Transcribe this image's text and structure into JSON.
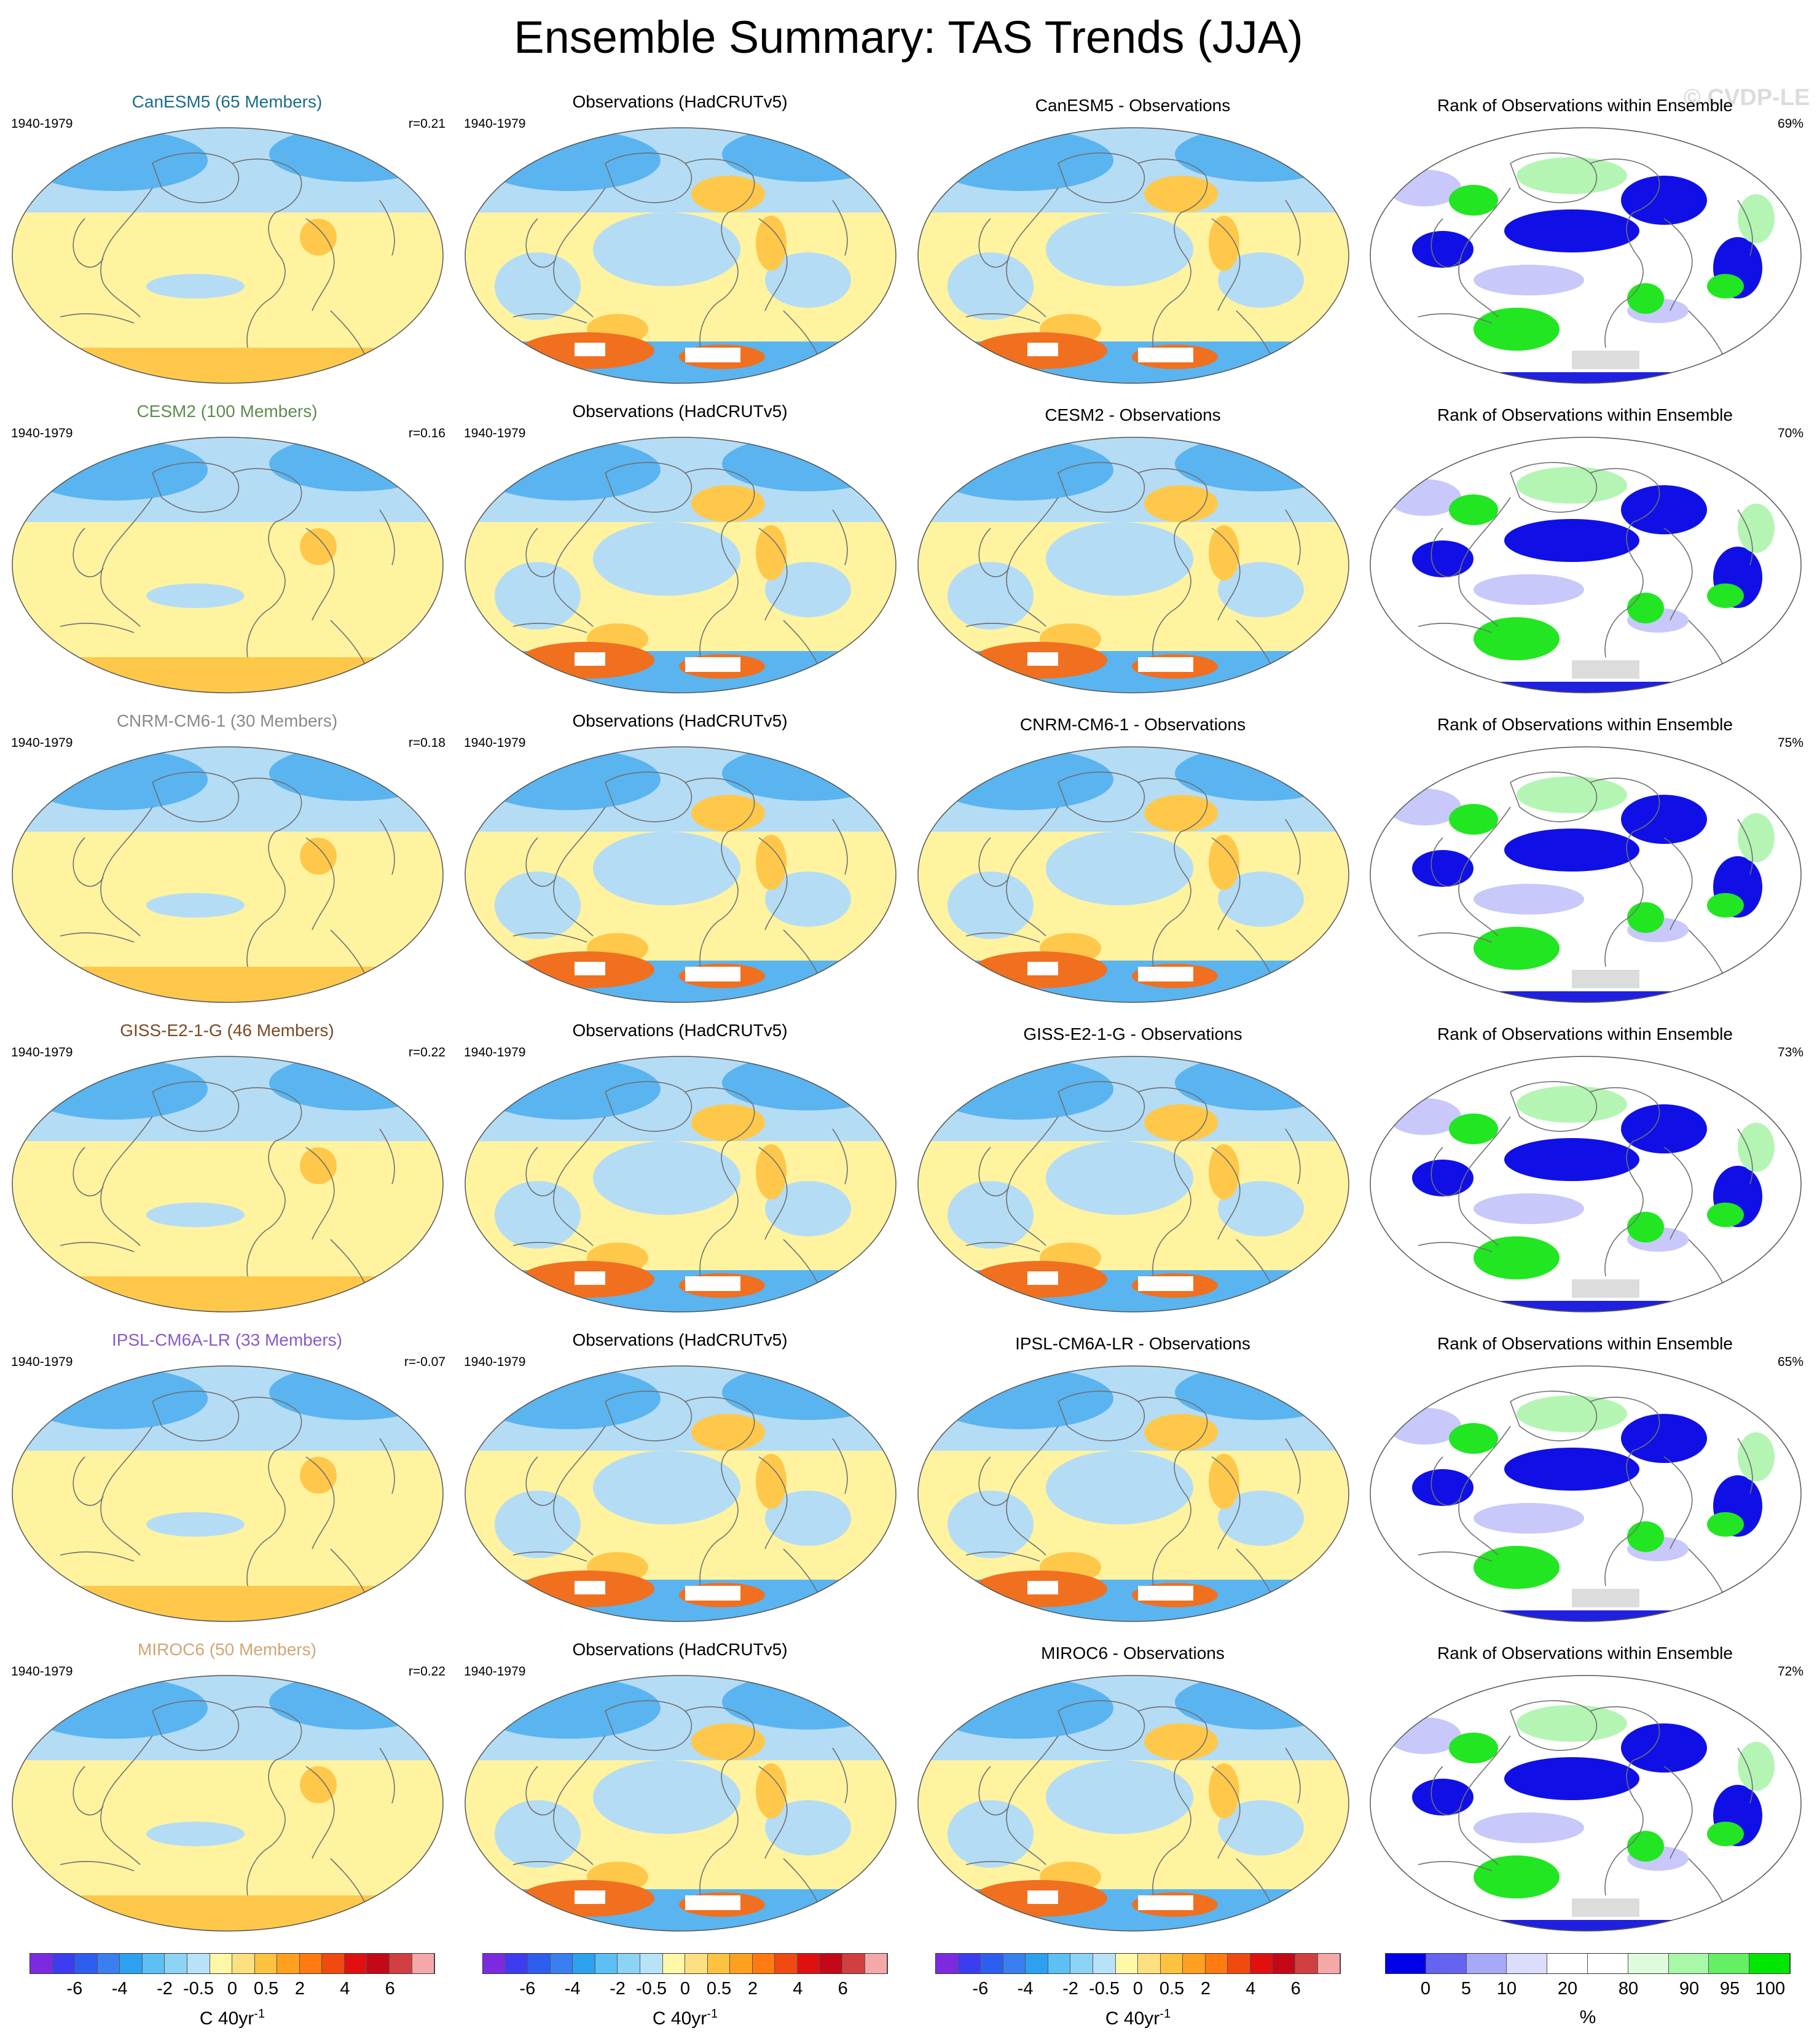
{
  "title": "Ensemble Summary: TAS Trends (JJA)",
  "watermark": "© CVDP-LE",
  "rows": [
    {
      "model_title": "CanESM5 (65 Members)",
      "model_color": "#1a6d8c",
      "period": "1940-1979",
      "r": "r=0.21",
      "obs_title": "Observations (HadCRUTv5)",
      "diff_title": "CanESM5 - Observations",
      "rank_title": "Rank of Observations within Ensemble",
      "rank_pct": "69%"
    },
    {
      "model_title": "CESM2 (100 Members)",
      "model_color": "#5e8c4f",
      "period": "1940-1979",
      "r": "r=0.16",
      "obs_title": "Observations (HadCRUTv5)",
      "diff_title": "CESM2 - Observations",
      "rank_title": "Rank of Observations within Ensemble",
      "rank_pct": "70%"
    },
    {
      "model_title": "CNRM-CM6-1 (30 Members)",
      "model_color": "#8a8a8a",
      "period": "1940-1979",
      "r": "r=0.18",
      "obs_title": "Observations (HadCRUTv5)",
      "diff_title": "CNRM-CM6-1 - Observations",
      "rank_title": "Rank of Observations within Ensemble",
      "rank_pct": "75%"
    },
    {
      "model_title": "GISS-E2-1-G (46 Members)",
      "model_color": "#7a4a22",
      "period": "1940-1979",
      "r": "r=0.22",
      "obs_title": "Observations (HadCRUTv5)",
      "diff_title": "GISS-E2-1-G - Observations",
      "rank_title": "Rank of Observations within Ensemble",
      "rank_pct": "73%"
    },
    {
      "model_title": "IPSL-CM6A-LR (33 Members)",
      "model_color": "#8a5ac8",
      "period": "1940-1979",
      "r": "r=-0.07",
      "obs_title": "Observations (HadCRUTv5)",
      "diff_title": "IPSL-CM6A-LR - Observations",
      "rank_title": "Rank of Observations within Ensemble",
      "rank_pct": "65%"
    },
    {
      "model_title": "MIROC6 (50 Members)",
      "model_color": "#d4a574",
      "period": "1940-1979",
      "r": "r=0.22",
      "obs_title": "Observations (HadCRUTv5)",
      "diff_title": "MIROC6 - Observations",
      "rank_title": "Rank of Observations within Ensemble",
      "rank_pct": "72%"
    }
  ],
  "trend_colorbar": {
    "colors": [
      "#7c2ae0",
      "#3c3cf0",
      "#2e5ef0",
      "#3a7ff0",
      "#2ea0f0",
      "#5cc0f5",
      "#8dd3f5",
      "#b8e2f8",
      "#fff7a8",
      "#ffe080",
      "#ffc240",
      "#ffa020",
      "#ff7a10",
      "#f04a10",
      "#e01010",
      "#c40818",
      "#d04040",
      "#f5a8a8"
    ],
    "ticks": [
      "-6",
      "-4",
      "-2",
      "-0.5",
      "0",
      "0.5",
      "2",
      "4",
      "6"
    ],
    "units": "C 40yr",
    "units_sup": "-1"
  },
  "rank_colorbar": {
    "colors": [
      "#0000e8",
      "#6464f0",
      "#a8a8f8",
      "#dcdcfc",
      "#ffffff",
      "#ffffff",
      "#dcfcdc",
      "#a8f8a8",
      "#64f064",
      "#00e600"
    ],
    "ticks": [
      "0",
      "5",
      "10",
      "20",
      "80",
      "90",
      "95",
      "100"
    ],
    "units": "%"
  }
}
